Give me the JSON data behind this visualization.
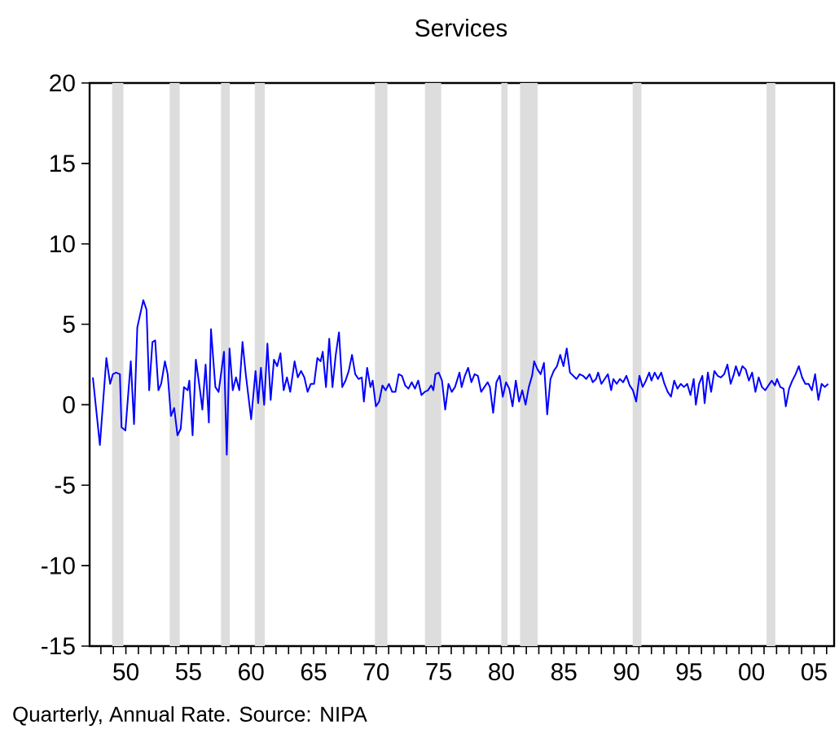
{
  "chart_data": {
    "type": "line",
    "title": "Services",
    "annotations": [
      "Quarterly, Annual Rate.  Source:  NIPA"
    ],
    "color": "#0000ff",
    "x": [
      1947.36,
      1947.92,
      1948.44,
      1948.74,
      1948.96,
      1949.22,
      1949.52,
      1949.65,
      1949.96,
      1950.39,
      1950.65,
      1950.91,
      1951.39,
      1951.65,
      1951.86,
      1952.12,
      1952.34,
      1952.6,
      1952.82,
      1953.12,
      1953.34,
      1953.6,
      1953.86,
      1954.12,
      1954.38,
      1954.64,
      1954.94,
      1955.07,
      1955.33,
      1955.59,
      1955.94,
      1956.11,
      1956.37,
      1956.63,
      1956.8,
      1957.15,
      1957.41,
      1957.84,
      1958.06,
      1958.28,
      1958.54,
      1958.8,
      1959.06,
      1959.32,
      1959.58,
      1960.01,
      1960.36,
      1960.57,
      1960.79,
      1961.05,
      1961.31,
      1961.57,
      1961.83,
      1962.09,
      1962.35,
      1962.61,
      1962.87,
      1963.13,
      1963.48,
      1963.74,
      1964.0,
      1964.26,
      1964.52,
      1964.78,
      1965.04,
      1965.3,
      1965.56,
      1965.73,
      1965.99,
      1966.25,
      1966.51,
      1966.77,
      1967.03,
      1967.29,
      1967.55,
      1967.81,
      1968.07,
      1968.33,
      1968.59,
      1968.85,
      1969.02,
      1969.28,
      1969.54,
      1969.72,
      1969.98,
      1970.24,
      1970.5,
      1970.76,
      1971.02,
      1971.28,
      1971.54,
      1971.8,
      1972.06,
      1972.32,
      1972.58,
      1972.84,
      1973.1,
      1973.36,
      1973.62,
      1973.88,
      1974.14,
      1974.4,
      1974.57,
      1974.74,
      1975.0,
      1975.26,
      1975.52,
      1975.78,
      1976.04,
      1976.3,
      1976.66,
      1976.83,
      1977.09,
      1977.35,
      1977.61,
      1977.87,
      1978.13,
      1978.39,
      1978.65,
      1978.91,
      1979.09,
      1979.35,
      1979.61,
      1979.87,
      1980.12,
      1980.38,
      1980.64,
      1980.9,
      1981.16,
      1981.42,
      1981.68,
      1981.94,
      1982.2,
      1982.46,
      1982.63,
      1982.89,
      1983.15,
      1983.41,
      1983.67,
      1983.93,
      1984.19,
      1984.45,
      1984.71,
      1984.97,
      1985.23,
      1985.49,
      1985.75,
      1986.01,
      1986.27,
      1986.53,
      1986.79,
      1987.05,
      1987.31,
      1987.57,
      1987.74,
      1988.0,
      1988.26,
      1988.52,
      1988.78,
      1988.96,
      1989.22,
      1989.48,
      1989.74,
      1990.0,
      1990.26,
      1990.52,
      1990.78,
      1991.04,
      1991.3,
      1991.56,
      1991.82,
      1992.0,
      1992.26,
      1992.52,
      1992.78,
      1993.04,
      1993.3,
      1993.56,
      1993.82,
      1994.08,
      1994.34,
      1994.6,
      1994.86,
      1995.12,
      1995.38,
      1995.55,
      1995.81,
      1996.07,
      1996.25,
      1996.51,
      1996.77,
      1997.03,
      1997.29,
      1997.55,
      1997.81,
      1998.07,
      1998.33,
      1998.59,
      1998.75,
      1999.01,
      1999.27,
      1999.53,
      1999.79,
      2000.05,
      2000.31,
      2000.57,
      2000.83,
      2001.09,
      2001.35,
      2001.61,
      2001.87,
      2002.04,
      2002.3,
      2002.56,
      2002.74,
      2003.0,
      2003.26,
      2003.52,
      2003.78,
      2004.04,
      2004.3,
      2004.56,
      2004.82,
      2005.08,
      2005.34,
      2005.6,
      2005.86,
      2006.12
    ],
    "values": [
      1.7,
      -2.5,
      2.9,
      1.3,
      1.9,
      2.0,
      1.9,
      -1.4,
      -1.6,
      2.7,
      -1.2,
      4.8,
      6.5,
      5.9,
      0.9,
      3.9,
      4.0,
      0.9,
      1.3,
      2.7,
      1.9,
      -0.7,
      -0.2,
      -1.9,
      -1.5,
      1.1,
      0.9,
      1.5,
      -1.9,
      2.8,
      0.8,
      -0.3,
      2.5,
      -1.1,
      4.7,
      1.1,
      0.8,
      3.3,
      -3.1,
      3.5,
      0.9,
      1.7,
      0.9,
      3.9,
      1.9,
      -0.9,
      2.1,
      0.1,
      2.3,
      0.0,
      3.8,
      0.3,
      2.8,
      2.4,
      3.2,
      0.9,
      1.7,
      0.8,
      2.7,
      1.7,
      2.1,
      1.7,
      0.8,
      1.3,
      1.3,
      2.9,
      2.7,
      3.3,
      1.1,
      4.1,
      1.1,
      3.1,
      4.5,
      1.1,
      1.5,
      2.1,
      3.1,
      1.9,
      1.6,
      1.7,
      0.2,
      2.3,
      1.1,
      1.5,
      -0.1,
      0.2,
      1.2,
      0.9,
      1.3,
      0.8,
      0.8,
      1.9,
      1.8,
      1.2,
      1.0,
      1.4,
      1.0,
      1.5,
      0.6,
      0.8,
      0.9,
      1.2,
      0.9,
      1.9,
      2.0,
      1.5,
      -0.3,
      1.3,
      0.8,
      1.1,
      2.0,
      1.1,
      1.8,
      2.3,
      1.4,
      1.9,
      1.8,
      0.8,
      1.1,
      1.4,
      1.1,
      -0.5,
      1.4,
      1.8,
      0.5,
      1.4,
      1.0,
      -0.1,
      1.5,
      0.2,
      0.9,
      0.0,
      1.1,
      1.8,
      2.7,
      2.2,
      1.9,
      2.6,
      -0.6,
      1.6,
      2.1,
      2.4,
      3.1,
      2.4,
      3.5,
      2.0,
      1.8,
      1.6,
      1.9,
      1.8,
      1.6,
      1.9,
      1.4,
      1.6,
      2.0,
      1.3,
      1.6,
      1.9,
      0.9,
      1.6,
      1.3,
      1.6,
      1.4,
      1.8,
      1.2,
      0.9,
      0.2,
      1.8,
      1.1,
      1.5,
      2.0,
      1.5,
      2.0,
      1.6,
      2.0,
      1.3,
      0.8,
      0.5,
      1.5,
      1.0,
      1.3,
      1.1,
      1.3,
      0.6,
      1.6,
      0.0,
      1.3,
      1.8,
      0.1,
      2.0,
      0.8,
      2.1,
      1.8,
      1.7,
      1.9,
      2.5,
      1.3,
      1.9,
      2.4,
      1.8,
      2.4,
      2.2,
      1.5,
      2.0,
      0.8,
      1.7,
      1.1,
      0.9,
      1.2,
      1.5,
      1.2,
      1.6,
      1.1,
      1.0,
      -0.1,
      1.0,
      1.5,
      1.9,
      2.4,
      1.7,
      1.3,
      1.3,
      0.9,
      1.9,
      0.3,
      1.3,
      1.1,
      1.3
    ],
    "xlim": [
      1947.1,
      2006.6
    ],
    "ylim": [
      -15,
      20
    ],
    "xticks": [
      {
        "value": 1948,
        "label": null
      },
      {
        "value": 1949,
        "label": null
      },
      {
        "value": 1950,
        "label": "50"
      },
      {
        "value": 1951,
        "label": null
      },
      {
        "value": 1952,
        "label": null
      },
      {
        "value": 1953,
        "label": null
      },
      {
        "value": 1954,
        "label": null
      },
      {
        "value": 1955,
        "label": "55"
      },
      {
        "value": 1956,
        "label": null
      },
      {
        "value": 1957,
        "label": null
      },
      {
        "value": 1958,
        "label": null
      },
      {
        "value": 1959,
        "label": null
      },
      {
        "value": 1960,
        "label": "60"
      },
      {
        "value": 1961,
        "label": null
      },
      {
        "value": 1962,
        "label": null
      },
      {
        "value": 1963,
        "label": null
      },
      {
        "value": 1964,
        "label": null
      },
      {
        "value": 1965,
        "label": "65"
      },
      {
        "value": 1966,
        "label": null
      },
      {
        "value": 1967,
        "label": null
      },
      {
        "value": 1968,
        "label": null
      },
      {
        "value": 1969,
        "label": null
      },
      {
        "value": 1970,
        "label": "70"
      },
      {
        "value": 1971,
        "label": null
      },
      {
        "value": 1972,
        "label": null
      },
      {
        "value": 1973,
        "label": null
      },
      {
        "value": 1974,
        "label": null
      },
      {
        "value": 1975,
        "label": "75"
      },
      {
        "value": 1976,
        "label": null
      },
      {
        "value": 1977,
        "label": null
      },
      {
        "value": 1978,
        "label": null
      },
      {
        "value": 1979,
        "label": null
      },
      {
        "value": 1980,
        "label": "80"
      },
      {
        "value": 1981,
        "label": null
      },
      {
        "value": 1982,
        "label": null
      },
      {
        "value": 1983,
        "label": null
      },
      {
        "value": 1984,
        "label": null
      },
      {
        "value": 1985,
        "label": "85"
      },
      {
        "value": 1986,
        "label": null
      },
      {
        "value": 1987,
        "label": null
      },
      {
        "value": 1988,
        "label": null
      },
      {
        "value": 1989,
        "label": null
      },
      {
        "value": 1990,
        "label": "90"
      },
      {
        "value": 1991,
        "label": null
      },
      {
        "value": 1992,
        "label": null
      },
      {
        "value": 1993,
        "label": null
      },
      {
        "value": 1994,
        "label": null
      },
      {
        "value": 1995,
        "label": "95"
      },
      {
        "value": 1996,
        "label": null
      },
      {
        "value": 1997,
        "label": null
      },
      {
        "value": 1998,
        "label": null
      },
      {
        "value": 1999,
        "label": null
      },
      {
        "value": 2000,
        "label": "00"
      },
      {
        "value": 2001,
        "label": null
      },
      {
        "value": 2002,
        "label": null
      },
      {
        "value": 2003,
        "label": null
      },
      {
        "value": 2004,
        "label": null
      },
      {
        "value": 2005,
        "label": "05"
      },
      {
        "value": 2006,
        "label": null
      }
    ],
    "yticks": [
      -15,
      -10,
      -5,
      0,
      5,
      10,
      15,
      20
    ],
    "bands": [
      {
        "axis": "x",
        "from": 1948.9,
        "to": 1949.8,
        "color": "#dddddd"
      },
      {
        "axis": "x",
        "from": 1953.5,
        "to": 1954.3,
        "color": "#dddddd"
      },
      {
        "axis": "x",
        "from": 1957.6,
        "to": 1958.3,
        "color": "#dddddd"
      },
      {
        "axis": "x",
        "from": 1960.3,
        "to": 1961.1,
        "color": "#dddddd"
      },
      {
        "axis": "x",
        "from": 1969.9,
        "to": 1970.9,
        "color": "#dddddd"
      },
      {
        "axis": "x",
        "from": 1973.9,
        "to": 1975.2,
        "color": "#dddddd"
      },
      {
        "axis": "x",
        "from": 1980.0,
        "to": 1980.5,
        "color": "#dddddd"
      },
      {
        "axis": "x",
        "from": 1981.5,
        "to": 1982.9,
        "color": "#dddddd"
      },
      {
        "axis": "x",
        "from": 1990.5,
        "to": 1991.2,
        "color": "#dddddd"
      },
      {
        "axis": "x",
        "from": 2001.2,
        "to": 2001.9,
        "color": "#dddddd"
      }
    ],
    "line_style": "solid"
  }
}
